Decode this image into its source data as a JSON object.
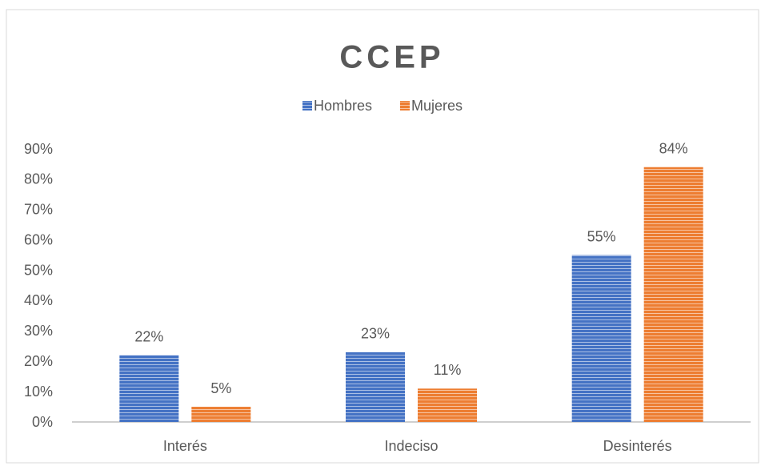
{
  "chart_data": {
    "type": "bar",
    "title": "CCEP",
    "categories": [
      "Interés",
      "Indeciso",
      "Desinterés"
    ],
    "series": [
      {
        "name": "Hombres",
        "color": "#4472c4",
        "values": [
          22,
          23,
          55
        ],
        "value_labels": [
          "22%",
          "23%",
          "55%"
        ]
      },
      {
        "name": "Mujeres",
        "color": "#ed7d31",
        "values": [
          5,
          11,
          84
        ],
        "value_labels": [
          "5%",
          "11%",
          "84%"
        ]
      }
    ],
    "ylim": [
      0,
      90
    ],
    "yticks": [
      {
        "value": 0,
        "label": "0%"
      },
      {
        "value": 10,
        "label": "10%"
      },
      {
        "value": 20,
        "label": "20%"
      },
      {
        "value": 30,
        "label": "30%"
      },
      {
        "value": 40,
        "label": "40%"
      },
      {
        "value": 50,
        "label": "50%"
      },
      {
        "value": 60,
        "label": "60%"
      },
      {
        "value": 70,
        "label": "70%"
      },
      {
        "value": 80,
        "label": "80%"
      },
      {
        "value": 90,
        "label": "90%"
      }
    ],
    "grid": false,
    "legend": "top"
  }
}
